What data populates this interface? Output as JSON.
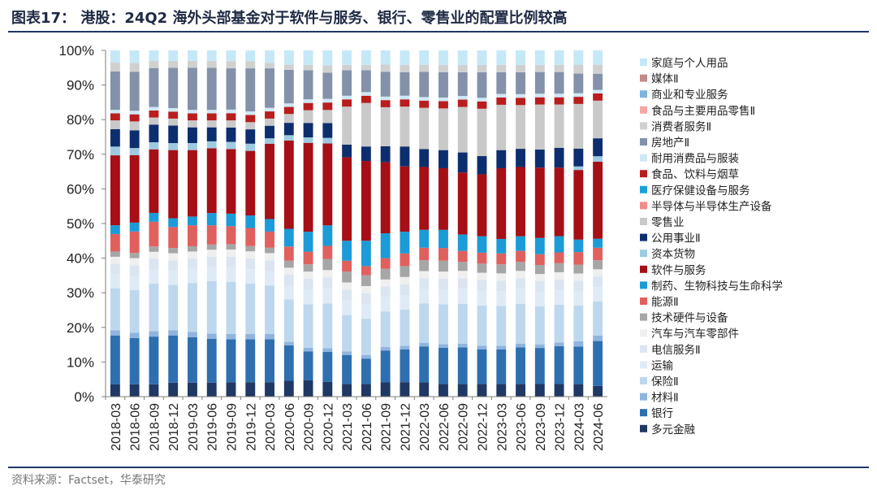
{
  "header": {
    "title": "图表17：  港股：24Q2 海外头部基金对于软件与服务、银行、零售业的配置比例较高"
  },
  "footer": {
    "source": "资料来源：Factset，华泰研究"
  },
  "chart_data": {
    "type": "bar",
    "stacked": true,
    "title": "图表17：  港股：24Q2 海外头部基金对于软件与服务、银行、零售业的配置比例较高",
    "xlabel": "",
    "ylabel": "",
    "ylim": [
      0,
      100
    ],
    "yticks": [
      "0%",
      "10%",
      "20%",
      "30%",
      "40%",
      "50%",
      "60%",
      "70%",
      "80%",
      "90%",
      "100%"
    ],
    "legend_position": "right",
    "grid": false,
    "categories": [
      "2018-03",
      "2018-06",
      "2018-09",
      "2018-12",
      "2019-03",
      "2019-06",
      "2019-09",
      "2019-12",
      "2020-03",
      "2020-06",
      "2020-09",
      "2020-12",
      "2021-03",
      "2021-06",
      "2021-09",
      "2021-12",
      "2022-03",
      "2022-06",
      "2022-09",
      "2022-12",
      "2023-03",
      "2023-06",
      "2023-09",
      "2023-12",
      "2024-03",
      "2024-06"
    ],
    "series": [
      {
        "name": "多元金融",
        "color": "#1f3864",
        "values": [
          3.5,
          3.5,
          3.5,
          4,
          4,
          4,
          4,
          4,
          4,
          4.5,
          4.5,
          4,
          3.5,
          3.5,
          4,
          4,
          4,
          3.5,
          3.5,
          3.5,
          3.5,
          3.5,
          3.5,
          3.5,
          3.5,
          3
        ]
      },
      {
        "name": "银行",
        "color": "#2e6fb0",
        "values": [
          14,
          13,
          13.5,
          13.5,
          13,
          12.5,
          12,
          12,
          12,
          10,
          8,
          8,
          8,
          7,
          9,
          9,
          10,
          10,
          10,
          9.5,
          9.5,
          10,
          10,
          10.5,
          10.5,
          12.5
        ]
      },
      {
        "name": "材料Ⅱ",
        "color": "#8fb4de",
        "values": [
          1.5,
          1.5,
          1.5,
          1.5,
          1.5,
          1.5,
          1.5,
          1.5,
          1.5,
          1,
          1,
          1,
          1,
          1,
          1,
          1,
          1,
          1,
          1,
          1,
          1,
          1,
          1,
          1,
          1.5,
          1.5
        ]
      },
      {
        "name": "保险Ⅱ",
        "color": "#bdd7ee",
        "values": [
          12,
          12,
          13.5,
          13,
          14,
          15,
          14.5,
          14,
          13.5,
          12,
          12,
          12,
          10,
          10,
          10,
          10,
          11,
          11,
          11,
          11,
          11,
          11,
          10.5,
          10.5,
          10,
          9.5
        ]
      },
      {
        "name": "运输",
        "color": "#deebf7",
        "values": [
          4,
          4,
          4,
          4,
          4,
          4,
          4,
          4,
          4,
          4,
          4,
          4,
          4,
          4,
          4,
          4,
          4,
          4,
          4,
          4,
          4,
          4,
          4,
          4,
          4,
          4
        ]
      },
      {
        "name": "电信服务Ⅱ",
        "color": "#dbe5f1",
        "values": [
          3,
          3,
          3,
          3,
          3,
          3,
          3,
          3,
          3,
          3,
          3,
          3,
          3,
          3,
          3,
          3,
          3,
          3,
          3,
          3,
          3,
          3,
          3,
          3,
          3,
          3
        ]
      },
      {
        "name": "汽车与汽车零部件",
        "color": "#efefef",
        "values": [
          2,
          2,
          2,
          2,
          2,
          2,
          2,
          2,
          2,
          2,
          2,
          2,
          2,
          2,
          2,
          2,
          2,
          2,
          2,
          2,
          2,
          2,
          2,
          2,
          2,
          2
        ]
      },
      {
        "name": "技术硬件与设备",
        "color": "#a6a6a6",
        "values": [
          1.5,
          1.5,
          1.5,
          1.5,
          1.5,
          1.5,
          1.5,
          1.5,
          1.5,
          2,
          2,
          3,
          3,
          3,
          3,
          3,
          3,
          3,
          2.5,
          2.5,
          2.5,
          2.5,
          2.5,
          2.5,
          2.5,
          2.5
        ]
      },
      {
        "name": "能源Ⅱ",
        "color": "#e0605e",
        "values": [
          5,
          6,
          7,
          6,
          6,
          5.5,
          5,
          5,
          4.5,
          4,
          3.5,
          3.5,
          3,
          2.5,
          3,
          3.5,
          3.5,
          3.5,
          3,
          3,
          3,
          3,
          3,
          3,
          3.5,
          3.5
        ]
      },
      {
        "name": "制药、生物科技与生命科学",
        "color": "#1b9bd7",
        "values": [
          2.5,
          2.5,
          2.5,
          2.5,
          2.5,
          3.5,
          3.5,
          3.5,
          3.5,
          5,
          5.5,
          5.5,
          5.5,
          7,
          7,
          6,
          5,
          5,
          4.5,
          4.5,
          4,
          4,
          4.5,
          4.5,
          3.5,
          2.5
        ]
      },
      {
        "name": "软件与服务",
        "color": "#a50f15",
        "values": [
          20,
          19,
          18,
          19.5,
          19,
          18.5,
          18,
          18,
          21,
          25,
          24.5,
          22,
          23,
          22,
          20,
          18,
          17.5,
          17,
          17,
          17,
          19.5,
          19,
          19.5,
          19,
          19.5,
          21.5
        ]
      },
      {
        "name": "资本货物",
        "color": "#9ecae1",
        "values": [
          2.5,
          2,
          2,
          2,
          2,
          2,
          2,
          2,
          1.5,
          1.5,
          1.5,
          1.5,
          0,
          0,
          0,
          0,
          0,
          0,
          0,
          0,
          0,
          0,
          0,
          0,
          1,
          1.5
        ]
      },
      {
        "name": "公用事业Ⅱ",
        "color": "#0d2e6e",
        "values": [
          5,
          5,
          5,
          5,
          4.5,
          4,
          4,
          4,
          3.5,
          3.5,
          4,
          4,
          3.5,
          4,
          4.5,
          5.5,
          5,
          5,
          5.5,
          5,
          5,
          5,
          5,
          5.5,
          5,
          5
        ]
      },
      {
        "name": "零售业",
        "color": "#c9c9c9",
        "values": [
          2.5,
          2.5,
          2,
          2,
          2,
          2,
          2,
          2,
          2,
          2.5,
          3.5,
          3.5,
          10.5,
          12,
          11,
          11,
          11.5,
          11.5,
          12.5,
          13,
          12.5,
          12,
          12.5,
          12,
          12.5,
          10.5
        ]
      },
      {
        "name": "半导体与半导体生产设备",
        "color": "#f08c8c",
        "values": [
          0,
          0,
          0,
          0,
          0,
          0,
          0,
          0,
          0,
          0,
          0,
          0,
          0,
          0,
          0,
          0,
          0,
          0,
          0,
          0,
          0,
          0,
          0,
          0,
          0,
          0
        ]
      },
      {
        "name": "医疗保健设备与服务",
        "color": "#17a2db",
        "values": [
          0,
          0,
          0,
          0,
          0,
          0,
          0,
          0,
          0,
          0,
          0,
          0,
          0,
          0,
          0,
          0,
          0,
          0,
          0,
          0,
          0,
          0,
          0,
          0,
          0,
          0
        ]
      },
      {
        "name": "食品、饮料与烟草",
        "color": "#b91d1d",
        "values": [
          2,
          2,
          2,
          2,
          2,
          2,
          2,
          2,
          2,
          2,
          2,
          2,
          2,
          2,
          2,
          2,
          2,
          2,
          2,
          2,
          2,
          2,
          2,
          2,
          2,
          2
        ]
      },
      {
        "name": "耐用消费品与服装",
        "color": "#cfe8f5",
        "values": [
          1,
          1,
          1,
          1,
          1,
          1,
          1,
          1,
          1,
          1,
          1,
          1,
          1,
          1,
          1,
          1,
          1,
          1,
          1,
          1,
          1,
          1,
          1,
          1,
          1,
          1
        ]
      },
      {
        "name": "房地产Ⅱ",
        "color": "#8391aa",
        "values": [
          11,
          11,
          11,
          11.5,
          12,
          12,
          11.5,
          12,
          11,
          9.5,
          8,
          7,
          7,
          6,
          7,
          6.5,
          7,
          7,
          6.5,
          7,
          6,
          6,
          6,
          6,
          5.5,
          4.5
        ]
      },
      {
        "name": "消费者服务Ⅱ",
        "color": "#d0d0d0",
        "values": [
          2.5,
          2.5,
          2,
          2,
          2,
          2,
          2,
          2,
          1.5,
          1.5,
          1.5,
          2,
          1.5,
          1.5,
          2,
          2,
          2,
          2,
          2,
          2,
          2,
          2,
          2,
          2,
          2.5,
          2.5
        ]
      },
      {
        "name": "食品与主要用品零售Ⅱ",
        "color": "#f4a6a6",
        "values": [
          0,
          0,
          0,
          0,
          0,
          0,
          0,
          0,
          0,
          0,
          0,
          0,
          0,
          0,
          0,
          0,
          0,
          0,
          0,
          0,
          0,
          0,
          0,
          0,
          0,
          0
        ]
      },
      {
        "name": "商业和专业服务",
        "color": "#7fb3e0",
        "values": [
          0,
          0,
          0,
          0,
          0,
          0,
          0,
          0,
          0,
          0,
          0,
          0,
          0,
          0,
          0,
          0,
          0,
          0,
          0,
          0,
          0,
          0,
          0,
          0,
          0,
          0
        ]
      },
      {
        "name": "媒体Ⅱ",
        "color": "#c48a8a",
        "values": [
          0,
          0,
          0,
          0,
          0,
          0,
          0,
          0,
          0,
          0,
          0,
          0,
          0,
          0,
          0,
          0,
          0,
          0,
          0,
          0,
          0,
          0,
          0,
          0,
          0,
          0
        ]
      },
      {
        "name": "家庭与个人用品",
        "color": "#c5e8f7",
        "values": [
          3.5,
          3.5,
          3,
          3,
          3,
          3,
          3,
          3,
          3.5,
          4,
          4,
          4,
          4,
          4,
          4,
          4,
          4,
          4,
          4,
          4,
          4,
          4,
          4,
          4,
          4,
          4
        ]
      }
    ]
  }
}
